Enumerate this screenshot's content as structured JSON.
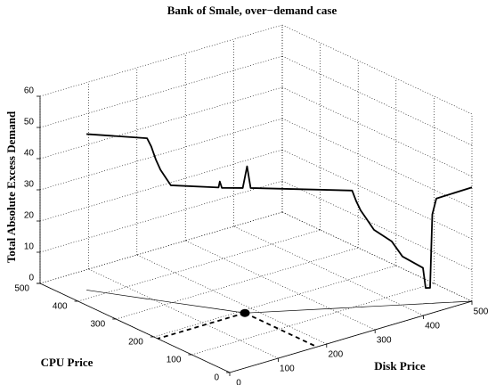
{
  "chart_data": {
    "type": "line3d",
    "title": "Bank of Smale, over−demand case",
    "xlabel": "Disk Price",
    "ylabel": "CPU Price",
    "zlabel": "Total Absolute Excess Demand",
    "xlim": [
      0,
      500
    ],
    "xticks": [
      0,
      100,
      200,
      300,
      400,
      500
    ],
    "ylim": [
      0,
      500
    ],
    "yticks": [
      0,
      100,
      200,
      300,
      400,
      500
    ],
    "zlim": [
      0,
      60
    ],
    "zticks": [
      0,
      10,
      20,
      30,
      40,
      50,
      60
    ],
    "grid": true,
    "series": [
      {
        "color": "#000000",
        "x": [
          41,
          94,
          98,
          102,
          106,
          110,
          115,
          157,
          158,
          160,
          178,
          183,
          188,
          331,
          337,
          343,
          352,
          362,
          387,
          402,
          431,
          435,
          441,
          444,
          450,
          500
        ],
        "y": [
          430,
          338,
          332,
          325,
          318,
          311,
          302,
          230,
          228,
          225,
          193,
          188,
          185,
          100,
          97,
          93,
          88,
          82,
          67,
          58,
          41,
          39,
          35,
          33,
          30,
          0
        ],
        "z": [
          50,
          51.5,
          49,
          45,
          42,
          40,
          37.5,
          39,
          41,
          39,
          40,
          47,
          40,
          37.5,
          34,
          31,
          28,
          24.5,
          20.5,
          15.5,
          11.5,
          5,
          5,
          28.5,
          33.5,
          36.5
        ]
      }
    ],
    "equilibrium": {
      "x": 180,
      "y": 190,
      "color": "#000000"
    }
  }
}
